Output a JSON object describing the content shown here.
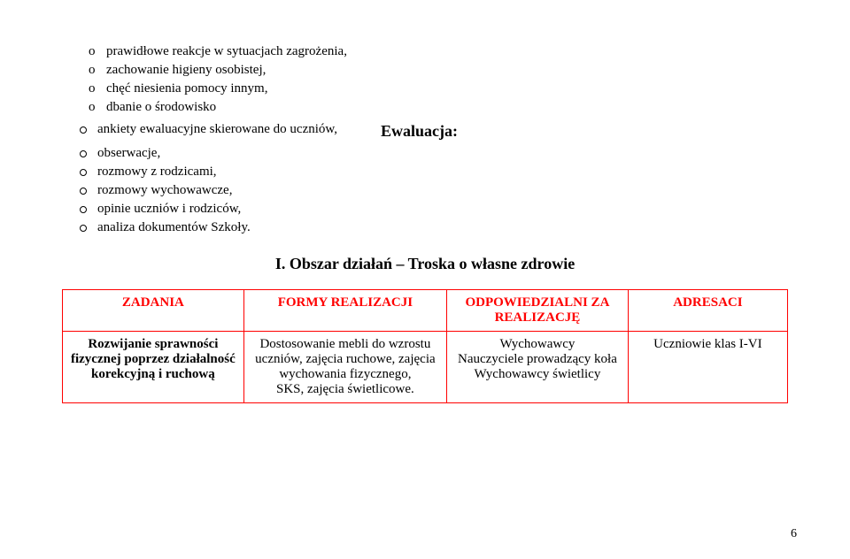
{
  "bullets_o": [
    "prawidłowe reakcje w sytuacjach zagrożenia,",
    "zachowanie higieny osobistej,",
    "chęć niesienia pomocy innym,",
    "dbanie o środowisko"
  ],
  "ewaluacja_heading": "Ewaluacja:",
  "bullets_hollow_first": "ankiety ewaluacyjne skierowane do uczniów,",
  "bullets_hollow_rest": [
    "obserwacje,",
    "rozmowy z rodzicami,",
    "rozmowy wychowawcze,",
    "opinie uczniów i rodziców,",
    "analiza dokumentów Szkoły."
  ],
  "section_heading": "I. Obszar działań – Troska o własne zdrowie",
  "table": {
    "headers": [
      "ZADANIA",
      "FORMY REALIZACJI",
      "ODPOWIEDZIALNI ZA REALIZACJĘ",
      "ADRESACI"
    ],
    "row": {
      "col1": "Rozwijanie sprawności fizycznej poprzez działalność korekcyjną i ruchową",
      "col2": "Dostosowanie mebli do wzrostu uczniów, zajęcia ruchowe, zajęcia wychowania fizycznego,\nSKS, zajęcia świetlicowe.",
      "col3": "Wychowawcy\nNauczyciele prowadzący koła\nWychowawcy świetlicy",
      "col4": "Uczniowie klas I-VI"
    },
    "col_widths": [
      "25%",
      "28%",
      "25%",
      "22%"
    ]
  },
  "page_number": "6"
}
